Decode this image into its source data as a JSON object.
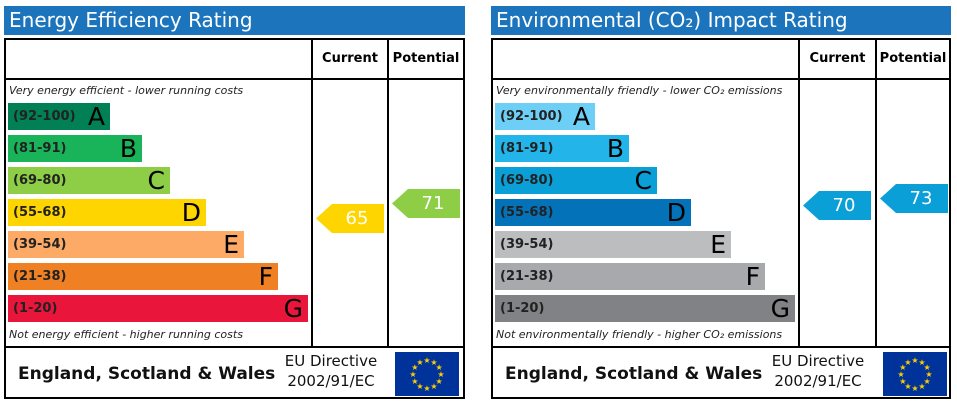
{
  "chart_data": [
    {
      "type": "bar",
      "title": "Energy Efficiency Rating",
      "columns": [
        "Current",
        "Potential"
      ],
      "top_caption": "Very energy efficient - lower running costs",
      "bottom_caption": "Not energy efficient - higher running costs",
      "bands": [
        {
          "range": "(92-100)",
          "letter": "A",
          "color": "#008054"
        },
        {
          "range": "(81-91)",
          "letter": "B",
          "color": "#19b459"
        },
        {
          "range": "(69-80)",
          "letter": "C",
          "color": "#8dce46"
        },
        {
          "range": "(55-68)",
          "letter": "D",
          "color": "#ffd500"
        },
        {
          "range": "(39-54)",
          "letter": "E",
          "color": "#fcaa65"
        },
        {
          "range": "(21-38)",
          "letter": "F",
          "color": "#ef8023"
        },
        {
          "range": "(1-20)",
          "letter": "G",
          "color": "#e9153b"
        }
      ],
      "current": {
        "value": "65",
        "band": "D",
        "color": "#ffd500"
      },
      "potential": {
        "value": "71",
        "band": "C",
        "color": "#8dce46"
      },
      "footer": {
        "country": "England, Scotland & Wales",
        "directive_line1": "EU Directive",
        "directive_line2": "2002/91/EC"
      }
    },
    {
      "type": "bar",
      "title": "Environmental (CO₂) Impact Rating",
      "columns": [
        "Current",
        "Potential"
      ],
      "top_caption": "Very environmentally friendly - lower CO₂ emissions",
      "bottom_caption": "Not environmentally friendly - higher CO₂ emissions",
      "bands": [
        {
          "range": "(92-100)",
          "letter": "A",
          "color": "#6ecff6"
        },
        {
          "range": "(81-91)",
          "letter": "B",
          "color": "#23b5ea"
        },
        {
          "range": "(69-80)",
          "letter": "C",
          "color": "#0b9fd8"
        },
        {
          "range": "(55-68)",
          "letter": "D",
          "color": "#0472b8"
        },
        {
          "range": "(39-54)",
          "letter": "E",
          "color": "#bbbdbf"
        },
        {
          "range": "(21-38)",
          "letter": "F",
          "color": "#a7a9ac"
        },
        {
          "range": "(1-20)",
          "letter": "G",
          "color": "#808285"
        }
      ],
      "current": {
        "value": "70",
        "band": "C",
        "color": "#0b9fd8"
      },
      "potential": {
        "value": "73",
        "band": "C",
        "color": "#0b9fd8"
      },
      "footer": {
        "country": "England, Scotland & Wales",
        "directive_line1": "EU Directive",
        "directive_line2": "2002/91/EC"
      }
    }
  ]
}
